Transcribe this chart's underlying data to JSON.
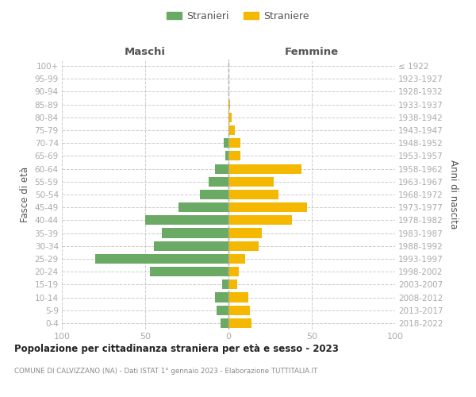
{
  "age_groups": [
    "0-4",
    "5-9",
    "10-14",
    "15-19",
    "20-24",
    "25-29",
    "30-34",
    "35-39",
    "40-44",
    "45-49",
    "50-54",
    "55-59",
    "60-64",
    "65-69",
    "70-74",
    "75-79",
    "80-84",
    "85-89",
    "90-94",
    "95-99",
    "100+"
  ],
  "birth_years": [
    "2018-2022",
    "2013-2017",
    "2008-2012",
    "2003-2007",
    "1998-2002",
    "1993-1997",
    "1988-1992",
    "1983-1987",
    "1978-1982",
    "1973-1977",
    "1968-1972",
    "1963-1967",
    "1958-1962",
    "1953-1957",
    "1948-1952",
    "1943-1947",
    "1938-1942",
    "1933-1937",
    "1928-1932",
    "1923-1927",
    "≤ 1922"
  ],
  "males": [
    5,
    7,
    8,
    4,
    47,
    80,
    45,
    40,
    50,
    30,
    17,
    12,
    8,
    2,
    3,
    0,
    0,
    0,
    0,
    0,
    0
  ],
  "females": [
    14,
    13,
    12,
    5,
    6,
    10,
    18,
    20,
    38,
    47,
    30,
    27,
    44,
    7,
    7,
    4,
    2,
    1,
    0,
    0,
    0
  ],
  "male_color": "#6aaa64",
  "female_color": "#f5b800",
  "title": "Popolazione per cittadinanza straniera per età e sesso - 2023",
  "subtitle": "COMUNE DI CALVIZZANO (NA) - Dati ISTAT 1° gennaio 2023 - Elaborazione TUTTITALIA.IT",
  "left_header": "Maschi",
  "right_header": "Femmine",
  "ylabel_left": "Fasce di età",
  "ylabel_right": "Anni di nascita",
  "legend_male": "Stranieri",
  "legend_female": "Straniere",
  "xlim": 100,
  "bg_color": "#ffffff",
  "grid_color": "#cccccc",
  "dashed_line_color": "#aaaaaa",
  "header_color": "#555555",
  "tick_color": "#aaaaaa",
  "title_color": "#222222",
  "subtitle_color": "#888888"
}
